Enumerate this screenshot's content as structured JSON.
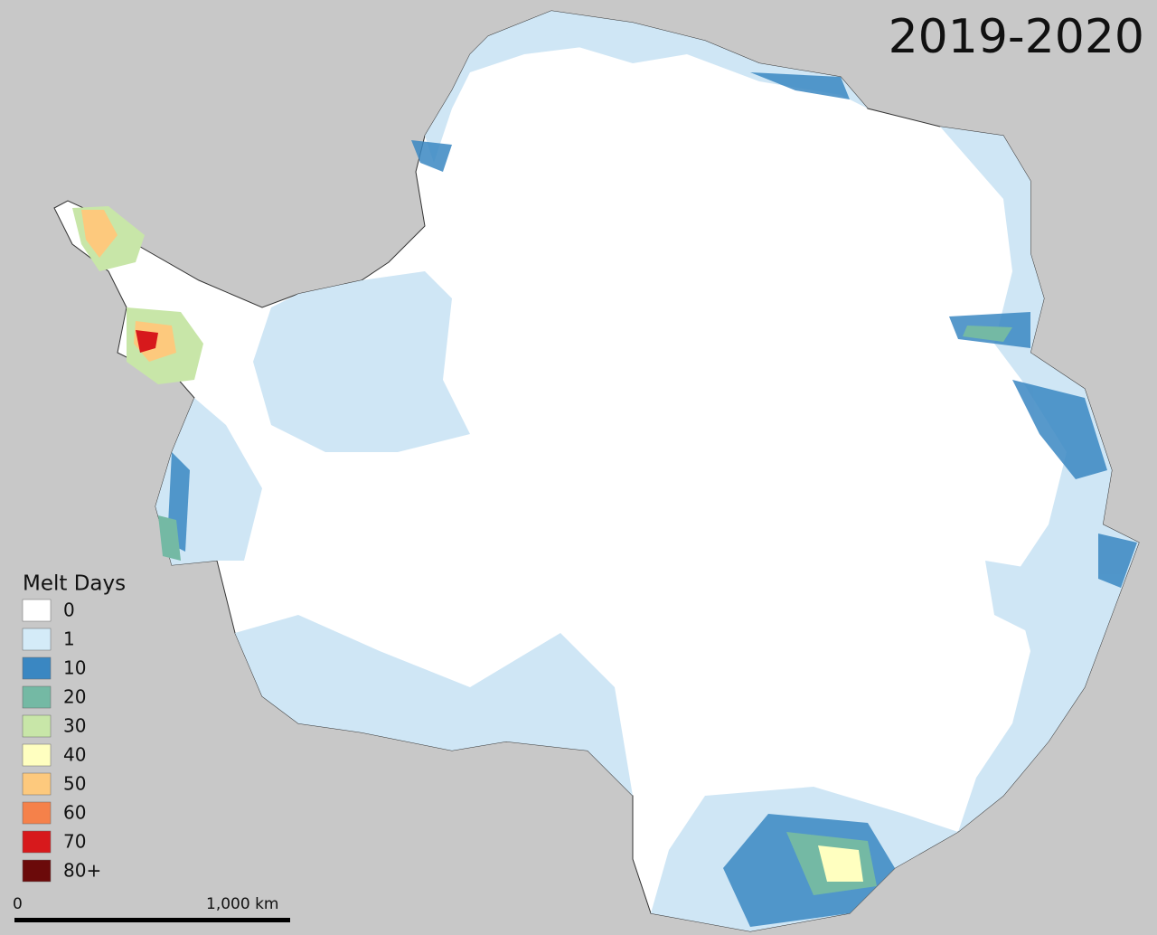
{
  "title": "2019-2020",
  "legend": {
    "title": "Melt Days",
    "items": [
      {
        "label": "0",
        "color": "#ffffff"
      },
      {
        "label": "1",
        "color": "#d4ebf8"
      },
      {
        "label": "10",
        "color": "#3a87c2"
      },
      {
        "label": "20",
        "color": "#74b9a4"
      },
      {
        "label": "30",
        "color": "#c8e6a8"
      },
      {
        "label": "40",
        "color": "#ffffc0"
      },
      {
        "label": "50",
        "color": "#fdc97d"
      },
      {
        "label": "60",
        "color": "#f5814a"
      },
      {
        "label": "70",
        "color": "#d7191c"
      },
      {
        "label": "80+",
        "color": "#6b0a0a"
      }
    ]
  },
  "scale_bar": {
    "start_label": "0",
    "end_label": "1,000 km"
  }
}
